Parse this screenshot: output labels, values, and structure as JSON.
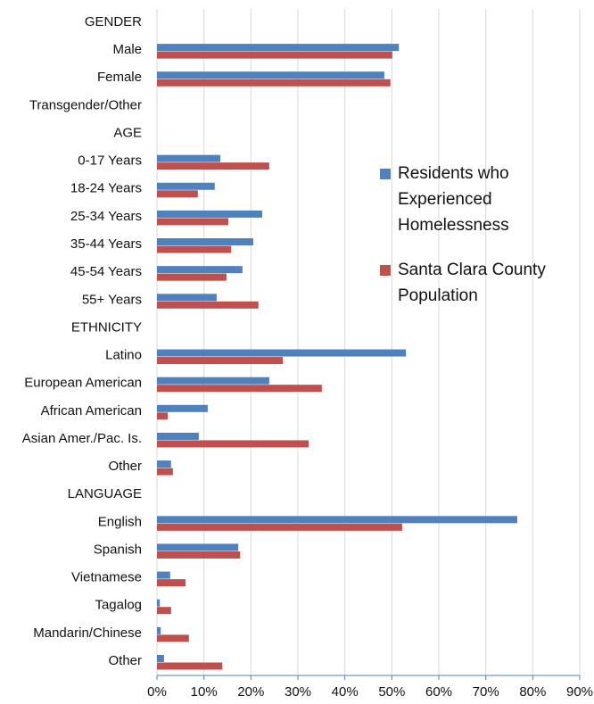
{
  "chart_data": {
    "type": "hbar",
    "categories": [
      "GENDER",
      "Male",
      "Female",
      "Transgender/Other",
      "AGE",
      "0-17 Years",
      "18-24 Years",
      "25-34 Years",
      "35-44 Years",
      "45-54 Years",
      "55+ Years",
      "ETHNICITY",
      "Latino",
      "European American",
      "African American",
      "Asian Amer./Pac. Is.",
      "Other",
      "LANGUAGE",
      "English",
      "Spanish",
      "Vietnamese",
      "Tagalog",
      "Mandarin/Chinese",
      "Other"
    ],
    "series": [
      {
        "name": "Residents who Experienced Homelessness",
        "color": "#4f81bd",
        "values": [
          null,
          51.5,
          48.4,
          null,
          null,
          13.5,
          12.3,
          22.4,
          20.5,
          18.2,
          12.7,
          null,
          53,
          23.9,
          10.8,
          8.9,
          3.0,
          null,
          76.7,
          17.3,
          2.8,
          0.6,
          0.8,
          1.5
        ]
      },
      {
        "name": "Santa Clara County Population",
        "color": "#c0504d",
        "values": [
          null,
          50.1,
          49.7,
          null,
          null,
          23.9,
          8.7,
          15.2,
          15.8,
          14.8,
          21.6,
          null,
          26.8,
          35.1,
          2.3,
          32.3,
          3.4,
          null,
          52.2,
          17.7,
          6.1,
          3.0,
          6.8,
          13.9
        ]
      }
    ],
    "xlim": [
      0,
      90
    ],
    "xticks": [
      {
        "value": 0,
        "label": "0%"
      },
      {
        "value": 10,
        "label": "10%"
      },
      {
        "value": 20,
        "label": "20%"
      },
      {
        "value": 30,
        "label": "30%"
      },
      {
        "value": 40,
        "label": "40%"
      },
      {
        "value": 50,
        "label": "50%"
      },
      {
        "value": 60,
        "label": "60%"
      },
      {
        "value": 70,
        "label": "70%"
      },
      {
        "value": 80,
        "label": "80%"
      },
      {
        "value": 90,
        "label": "90%"
      }
    ],
    "grid": true,
    "legend": "right"
  }
}
